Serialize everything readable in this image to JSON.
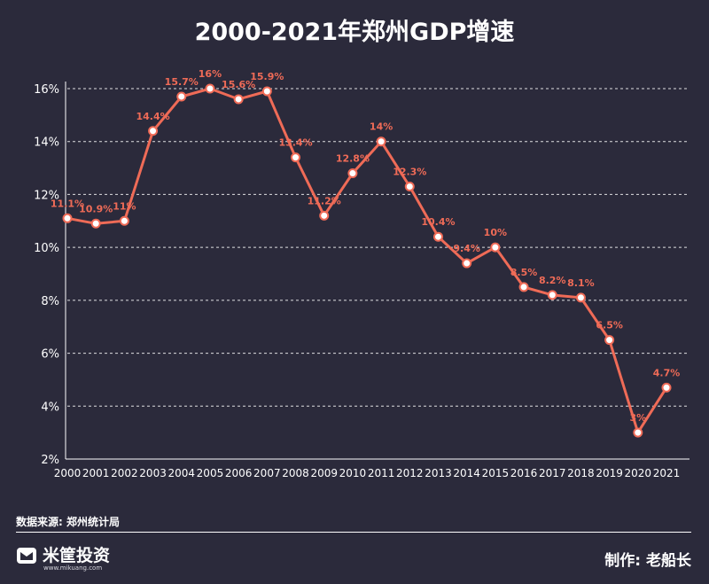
{
  "title": "2000-2021年郑州GDP增速",
  "source": "数据来源: 郑州统计局",
  "brand": {
    "name": "米筐投资",
    "domain": "www.mikuang.com",
    "icon": "mikuang-logo-icon"
  },
  "author": "制作: 老船长",
  "colors": {
    "background": "#2b2a3b",
    "line": "#ef6b57",
    "label": "#ef6b57",
    "grid": "#ffffff",
    "marker_fill": "#ffffff"
  },
  "chart_data": {
    "type": "line",
    "title": "2000-2021年郑州GDP增速",
    "xlabel": "",
    "ylabel": "",
    "x": [
      "2000",
      "2001",
      "2002",
      "2003",
      "2004",
      "2005",
      "2006",
      "2007",
      "2008",
      "2009",
      "2010",
      "2011",
      "2012",
      "2013",
      "2014",
      "2015",
      "2016",
      "2017",
      "2018",
      "2019",
      "2020",
      "2021"
    ],
    "series": [
      {
        "values": [
          11.1,
          10.9,
          11,
          14.4,
          15.7,
          16,
          15.6,
          15.9,
          13.4,
          11.2,
          12.8,
          14,
          12.3,
          10.4,
          9.4,
          10,
          8.5,
          8.2,
          8.1,
          6.5,
          3,
          4.7
        ],
        "labels": [
          "11.1%",
          "10.9%",
          "11%",
          "14.4%",
          "15.7%",
          "16%",
          "15.6%",
          "15.9%",
          "13.4%",
          "11.2%",
          "12.8%",
          "14%",
          "12.3%",
          "10.4%",
          "9.4%",
          "10%",
          "8.5%",
          "8.2%",
          "8.1%",
          "6.5%",
          "3%",
          "4.7%"
        ]
      }
    ],
    "ylim": [
      2,
      16
    ],
    "yticks": [
      2,
      4,
      6,
      8,
      10,
      12,
      14,
      16
    ],
    "ytick_labels": [
      "2%",
      "4%",
      "6%",
      "8%",
      "10%",
      "12%",
      "14%",
      "16%"
    ],
    "grid": "horizontal-dashed",
    "legend": "none"
  }
}
